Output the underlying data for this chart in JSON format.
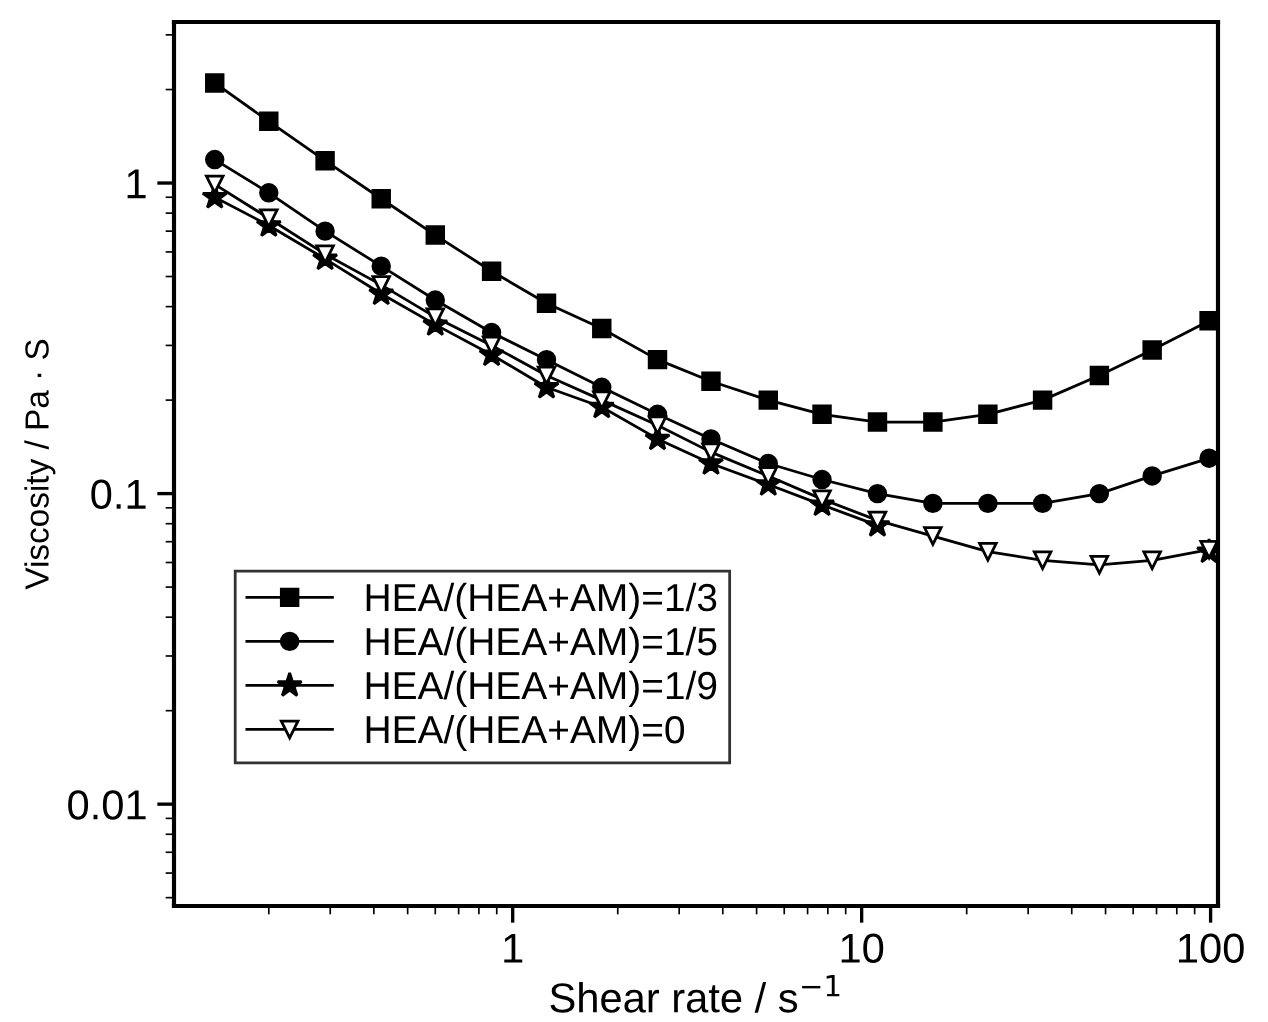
{
  "chart_data": {
    "type": "line",
    "xlabel": "Shear rate / s$^{−1}$",
    "ylabel": "Viscosity / Pa · S",
    "log": "xy",
    "x": [
      0.14,
      0.2,
      0.29,
      0.42,
      0.6,
      0.87,
      1.25,
      1.8,
      2.6,
      3.7,
      5.4,
      7.7,
      11.1,
      16,
      23,
      33,
      48,
      68,
      99
    ],
    "xlim": [
      0.107,
      105
    ],
    "ylim": [
      0.0047,
      3.3
    ],
    "xticks": [
      1,
      10,
      100
    ],
    "yticks": [
      0.01,
      0.1,
      1
    ],
    "grid": false,
    "legend": "bottom left",
    "line_style": "solid",
    "series": [
      {
        "name": "HEA/(HEA+AM)=1/3",
        "color": "#000000",
        "marker": "square",
        "values": [
          2.1,
          1.58,
          1.18,
          0.89,
          0.68,
          0.52,
          0.41,
          0.34,
          0.27,
          0.23,
          0.2,
          0.18,
          0.17,
          0.17,
          0.18,
          0.2,
          0.24,
          0.29,
          0.36
        ]
      },
      {
        "name": "HEA/(HEA+AM)=1/5",
        "color": "#000000",
        "marker": "circle",
        "values": [
          1.19,
          0.93,
          0.7,
          0.54,
          0.42,
          0.33,
          0.27,
          0.22,
          0.18,
          0.15,
          0.125,
          0.111,
          0.1,
          0.093,
          0.093,
          0.093,
          0.1,
          0.114,
          0.13
        ]
      },
      {
        "name": "HEA/(HEA+AM)=1/9",
        "color": "#000000",
        "marker": "star",
        "values": [
          0.9,
          0.73,
          0.57,
          0.44,
          0.35,
          0.28,
          0.22,
          0.19,
          0.15,
          0.125,
          0.107,
          0.092,
          0.079,
          null,
          null,
          null,
          null,
          null,
          0.065
        ]
      },
      {
        "name": "HEA/(HEA+AM)=0",
        "color": "#000000",
        "marker": "triangle",
        "values": [
          0.99,
          0.77,
          0.59,
          0.47,
          0.37,
          0.3,
          0.24,
          0.2,
          0.166,
          0.136,
          0.114,
          0.096,
          0.082,
          0.073,
          0.065,
          0.061,
          0.059,
          0.061,
          0.066
        ]
      }
    ]
  }
}
